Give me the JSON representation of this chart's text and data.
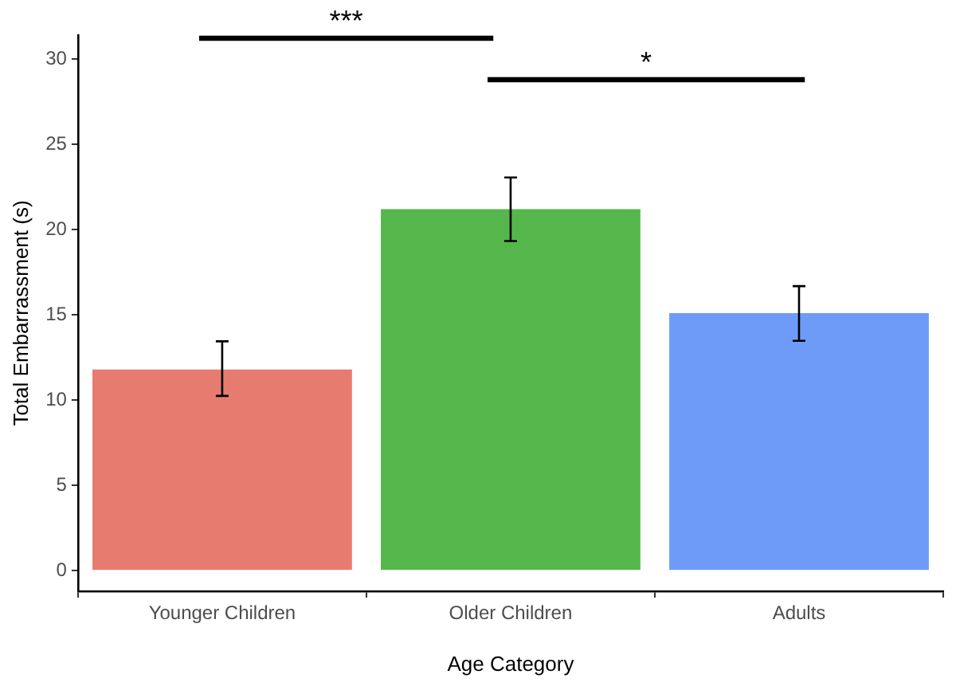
{
  "chart_data": {
    "type": "bar",
    "xlabel": "Age Category",
    "ylabel": "Total Embarrassment (s)",
    "categories": [
      "Younger Children",
      "Older Children",
      "Adults"
    ],
    "values": [
      11.8,
      21.2,
      15.1
    ],
    "colors": [
      "#e87b6f",
      "#55b74b",
      "#6e9bf8"
    ],
    "errors": [
      [
        10.25,
        13.45
      ],
      [
        19.33,
        23.05
      ],
      [
        13.48,
        16.68
      ]
    ],
    "ylim": [
      -1.2,
      31.4
    ],
    "yticks": [
      0,
      5,
      10,
      15,
      20,
      25,
      30
    ],
    "grid": false,
    "legend": false,
    "annotations": [
      "***",
      "*"
    ]
  }
}
